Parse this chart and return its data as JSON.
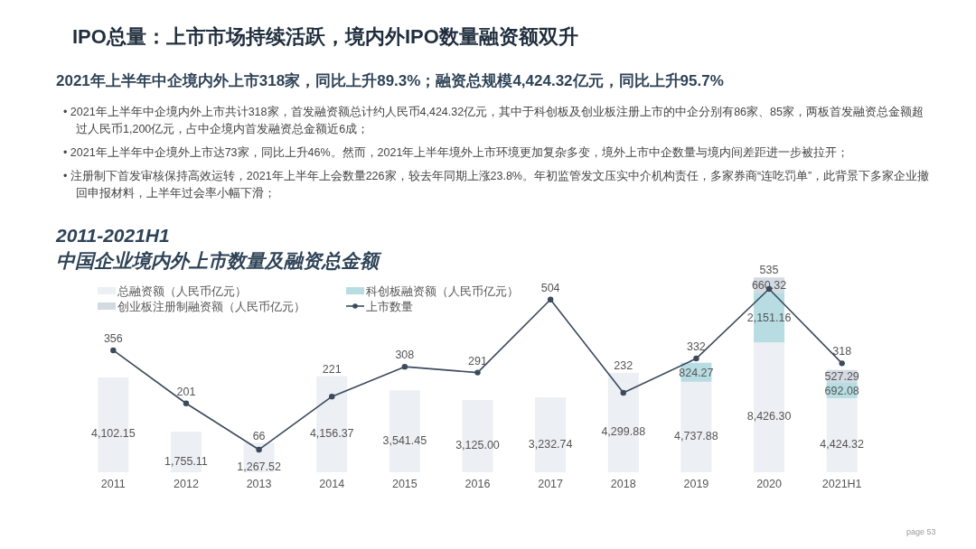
{
  "chart_data": {
    "type": "bar",
    "stacked": true,
    "title": "IPO总量：上市市场持续活跃，境内外IPO数量融资额双升",
    "subtitle": "2011-2021H1\n中国企业境内外上市数量及融资总金额",
    "annotations": [
      "2021年上半年中企境内外上市318家，同比上升89.3%；融资总规模4,424.32亿元，同比上升95.7%",
      "• 2021年上半年中企境内外上市共计318家，首发融资额总计约人民币4,424.32亿元，其中于科创板及创业板注册上市的中企分别有86家、85家，两板首发融资总金额超过人民币1,200亿元，占中企境内首发融资总金额近6成；",
      "• 2021年上半年中企境外上市达73家，同比上升46%。然而，2021年上半年境外上市环境更加复杂多变，境外上市中企数量与境内间差距进一步被拉开；",
      "• 注册制下首发审核保持高效运转，2021年上半年上会数量226家，较去年同期上涨23.8%。年初监管发文压实中介机构责任，多家券商“连吃罚单”，此背景下多家企业撤回申报材料，上半年过会率小幅下滑；",
      "page  53"
    ],
    "categories": [
      "2011",
      "2012",
      "2013",
      "2014",
      "2015",
      "2016",
      "2017",
      "2018",
      "2019",
      "2020",
      "2021H1"
    ],
    "tick_labels": "x",
    "legend": "top left",
    "series": [
      {
        "name": "总融资额（人民币亿元）",
        "color": "#eceff3",
        "values": [
          4102.15,
          1755.11,
          1267.52,
          4156.37,
          3541.45,
          3125.0,
          3232.74,
          4299.88,
          3913.61,
          5614.82,
          3204.95
        ],
        "value_labels": [
          "4,102.15",
          "1,755.11",
          "1,267.52",
          "4,156.37",
          "3,541.45",
          "3,125.00",
          "3,232.74",
          "4,299.88",
          null,
          null,
          null
        ]
      },
      {
        "name": "科创板融资额（人民币亿元）",
        "color": "#b7dde3",
        "values": [
          null,
          null,
          null,
          null,
          null,
          null,
          null,
          null,
          824.27,
          2151.16,
          692.08
        ],
        "value_labels": [
          null,
          null,
          null,
          null,
          null,
          null,
          null,
          null,
          "824.27",
          "2,151.16",
          "692.08"
        ]
      },
      {
        "name": "创业板注册制融资额（人民币亿元）",
        "color": "#d3dae2",
        "values": [
          null,
          null,
          null,
          null,
          null,
          null,
          null,
          null,
          null,
          660.32,
          527.29
        ],
        "value_labels": [
          null,
          null,
          null,
          null,
          null,
          null,
          null,
          null,
          null,
          "660.32",
          "527.29"
        ]
      },
      {
        "name": "上市数量",
        "type": "line",
        "axis": "y2",
        "color": "#3b4a5c",
        "marker": "circle",
        "values": [
          356,
          201,
          66,
          221,
          308,
          291,
          504,
          232,
          332,
          535,
          318
        ],
        "value_labels": [
          "356",
          "201",
          "66",
          "221",
          "308",
          "291",
          "504",
          "232",
          "332",
          "535",
          "318"
        ]
      }
    ],
    "totals": [
      null,
      null,
      null,
      null,
      null,
      null,
      null,
      null,
      "4,737.88",
      "8,426.30",
      "4,424.32"
    ]
  }
}
